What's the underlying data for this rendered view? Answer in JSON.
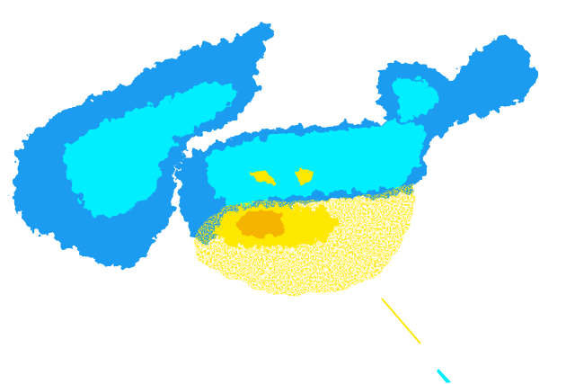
{
  "map": {
    "type": "radar-reflectivity-composite",
    "background": "#ffffff",
    "colors": {
      "light_echo": "#1e9cf0",
      "moderate_echo": "#00eeff",
      "heavy_echo": "#ffe800",
      "core_echo": "#f5b400"
    }
  }
}
